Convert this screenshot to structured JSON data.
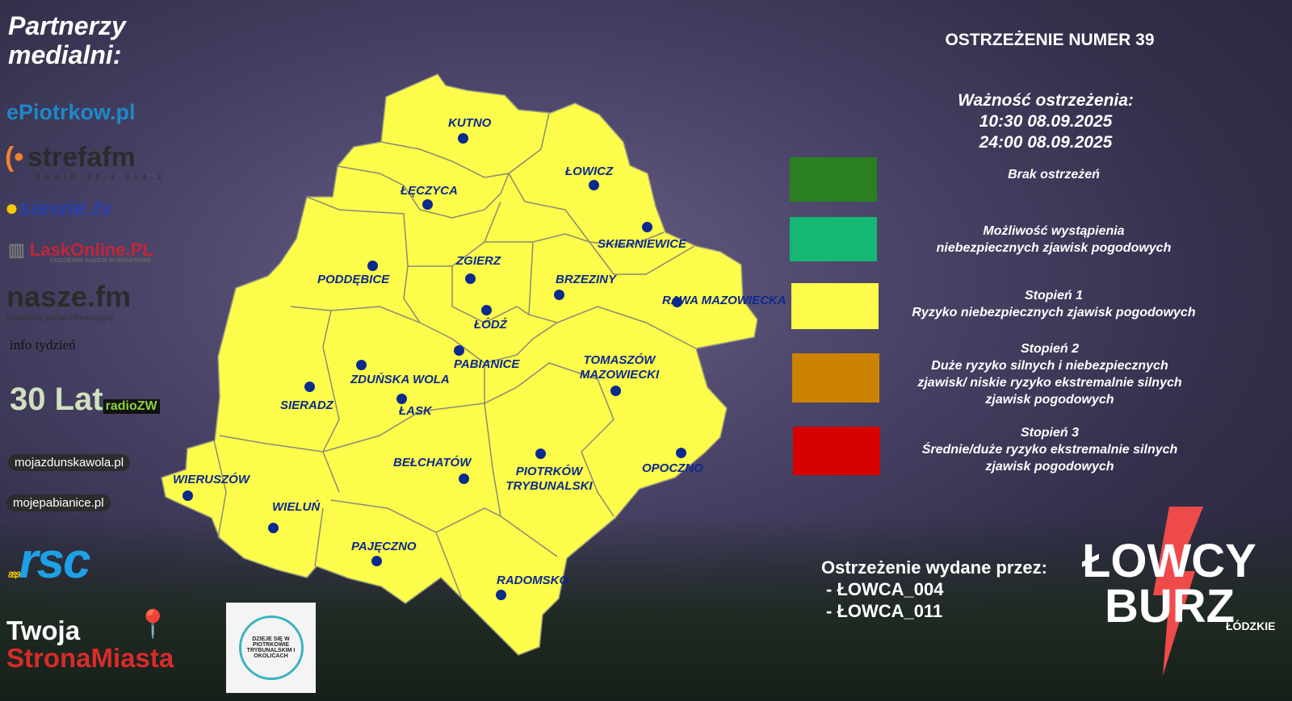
{
  "partners": {
    "title_line1": "Partnerzy",
    "title_line2": "medialni:",
    "logos": [
      "ePiotrkow.pl",
      "strefafm",
      "RADIO 98,2 104,2",
      "siewie.tv",
      "LaskOnline.PL",
      "CODZIENNA GAZETA INTERNETOWA",
      "nasze.fm",
      "regionalny portal informacyjny",
      "info tydzień",
      "30 Lat",
      "radioZW",
      "mojazdunskawola.pl",
      "mojepabianice.pl",
      "rsc",
      "88,9",
      "Twoja",
      "StronaMiasta",
      "DZIEJE SIĘ W PIOTRKOWIE TRYBUNALSKIM I OKOLICACH"
    ]
  },
  "warning": {
    "title": "OSTRZEŻENIE NUMER 39",
    "validity_label": "Ważność ostrzeżenia:",
    "from": "10:30 08.09.2025",
    "to": "24:00 08.09.2025",
    "issued_label": "Ostrzeżenie wydane przez:",
    "issuers": [
      "- ŁOWCA_004",
      "- ŁOWCA_011"
    ]
  },
  "legend": [
    {
      "color": "#2a8020",
      "line1": "Brak ostrzeżeń",
      "line2": ""
    },
    {
      "color": "#14b873",
      "line1": "Możliwość wystąpienia",
      "line2": "niebezpiecznych zjawisk pogodowych"
    },
    {
      "color": "#fdfc4a",
      "line1": "Stopień 1",
      "line2": "Ryzyko niebezpiecznych zjawisk pogodowych"
    },
    {
      "color": "#cc8400",
      "line1": "Stopień 2",
      "line2": "Duże ryzyko silnych i niebezpiecznych zjawisk/ niskie ryzyko ekstremalnie silnych zjawisk pogodowych"
    },
    {
      "color": "#d60000",
      "line1": "Stopień 3",
      "line2": "Średnie/duże ryzyko ekstremalnie silnych zjawisk pogodowych"
    }
  ],
  "map": {
    "fill_color": "#fdfc4a",
    "level": "Stopień 1",
    "counties": [
      "KUTNO",
      "ŁOWICZ",
      "ŁĘCZYCA",
      "SKIERNIEWICE",
      "ZGIERZ",
      "PODDĘBICE",
      "BRZEZINY",
      "ŁÓDŹ",
      "RAWA MAZOWIECKA",
      "PABIANICE",
      "TOMASZÓW MAZOWIECKI",
      "ZDUŃSKA WOLA",
      "SIERADZ",
      "ŁASK",
      "BEŁCHATÓW",
      "PIOTRKÓW TRYBUNALSKI",
      "OPOCZNO",
      "WIERUSZÓW",
      "WIELUŃ",
      "PAJĘCZNO",
      "RADOMSKO"
    ]
  },
  "brand": {
    "line1": "ŁOWCY",
    "line2": "BURZ",
    "line3": "ŁÓDZKIE"
  }
}
